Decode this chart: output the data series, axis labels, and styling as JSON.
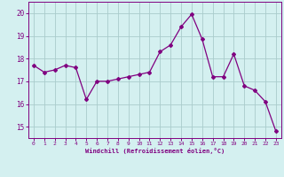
{
  "x": [
    0,
    1,
    2,
    3,
    4,
    5,
    6,
    7,
    8,
    9,
    10,
    11,
    12,
    13,
    14,
    15,
    16,
    17,
    18,
    19,
    20,
    21,
    22,
    23
  ],
  "y": [
    17.7,
    17.4,
    17.5,
    17.7,
    17.6,
    16.2,
    17.0,
    17.0,
    17.1,
    17.2,
    17.3,
    17.4,
    18.3,
    18.6,
    19.4,
    19.95,
    18.85,
    17.2,
    17.2,
    18.2,
    16.8,
    16.6,
    16.1,
    14.8
  ],
  "line_color": "#800080",
  "marker": "D",
  "marker_size": 2,
  "bg_color": "#d4f0f0",
  "grid_color": "#aacccc",
  "xlabel": "Windchill (Refroidissement éolien,°C)",
  "xlabel_color": "#800080",
  "tick_color": "#800080",
  "ylim": [
    14.5,
    20.5
  ],
  "yticks": [
    15,
    16,
    17,
    18,
    19,
    20
  ],
  "xticks": [
    0,
    1,
    2,
    3,
    4,
    5,
    6,
    7,
    8,
    9,
    10,
    11,
    12,
    13,
    14,
    15,
    16,
    17,
    18,
    19,
    20,
    21,
    22,
    23
  ]
}
